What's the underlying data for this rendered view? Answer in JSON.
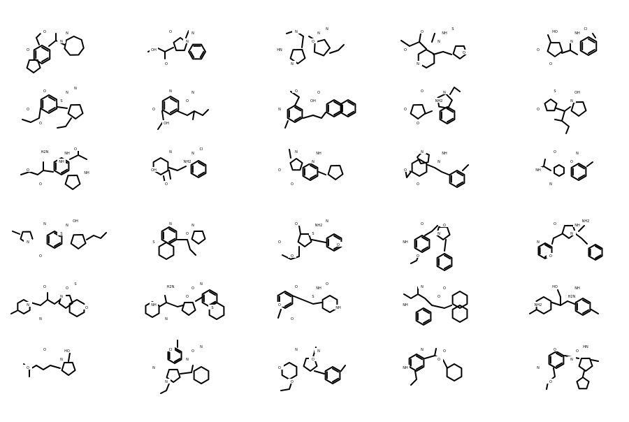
{
  "colors": {
    "background": "#ffffff",
    "bond": "#000000"
  },
  "grid": {
    "rows": 6,
    "columns": 5
  },
  "molecules": [
    {
      "atom_labels": [
        "O",
        "N",
        "O",
        "N"
      ]
    },
    {
      "atom_labels": [
        "O",
        "N",
        "OH",
        "N",
        "O"
      ]
    },
    {
      "atom_labels": [
        "N",
        "O",
        "HN",
        "N",
        "N",
        "N"
      ]
    },
    {
      "atom_labels": [
        "O",
        "N",
        "O",
        "NH",
        "N",
        "S",
        "O"
      ]
    },
    {
      "atom_labels": [
        "HO",
        "N",
        "O",
        "NH",
        "O",
        "Cl"
      ]
    },
    {
      "atom_labels": [
        "O",
        "S",
        "O",
        "N",
        "O",
        "N"
      ]
    },
    {
      "atom_labels": [
        "N",
        "O",
        "O",
        "N",
        "OH"
      ]
    },
    {
      "atom_labels": [
        "O",
        "OH",
        "N",
        "O"
      ]
    },
    {
      "atom_labels": [
        "O",
        "NH2",
        "O",
        "N",
        "O"
      ]
    },
    {
      "atom_labels": [
        "S",
        "N",
        "O",
        "OH"
      ]
    },
    {
      "atom_labels": [
        "H2N",
        "NH",
        "O",
        "NH",
        "O",
        "O",
        "NH"
      ]
    },
    {
      "atom_labels": [
        "N",
        "NH2",
        "OH",
        "N",
        "O",
        "Cl"
      ]
    },
    {
      "atom_labels": [
        "N",
        "N",
        "O",
        "NH",
        "O"
      ]
    },
    {
      "atom_labels": [
        "N",
        "N",
        "O",
        "NH",
        "O"
      ]
    },
    {
      "atom_labels": [
        "O",
        "O",
        "NH",
        "N",
        "N"
      ]
    },
    {
      "atom_labels": [
        "N",
        "S",
        "N",
        "N",
        "O",
        "OH"
      ]
    },
    {
      "atom_labels": [
        "N",
        "O",
        "S",
        "N"
      ]
    },
    {
      "atom_labels": [
        "O",
        "S",
        "O",
        "NH2",
        "O",
        "N",
        "O"
      ]
    },
    {
      "atom_labels": [
        "O",
        "N",
        "NH",
        "O",
        "O"
      ]
    },
    {
      "atom_labels": [
        "O",
        "N",
        "N",
        "NH",
        "O",
        "NH2"
      ]
    },
    {
      "atom_labels": [
        "O",
        "N",
        "N",
        "O",
        "N",
        "S",
        "O"
      ]
    },
    {
      "atom_labels": [
        "H2N",
        "O",
        "NH",
        "O",
        "N",
        "N",
        "S"
      ]
    },
    {
      "atom_labels": [
        "O",
        "S",
        "O",
        "NH",
        "O",
        "O",
        "NH"
      ]
    },
    {
      "atom_labels": [
        "N",
        "O",
        "NH",
        "O"
      ]
    },
    {
      "atom_labels": [
        "HO",
        "H2N",
        "NH2",
        "NH"
      ]
    },
    {
      "atom_labels": [
        "O",
        "N",
        "O",
        "HO"
      ]
    },
    {
      "atom_labels": [
        "Cl",
        "N",
        "N",
        "O",
        "N",
        "N"
      ]
    },
    {
      "atom_labels": [
        "N",
        "O",
        "O",
        "N",
        "O"
      ]
    },
    {
      "atom_labels": [
        "N",
        "O",
        "NH",
        "O"
      ]
    },
    {
      "atom_labels": [
        "O",
        "N",
        "N",
        "O",
        "O",
        "HN"
      ]
    }
  ]
}
